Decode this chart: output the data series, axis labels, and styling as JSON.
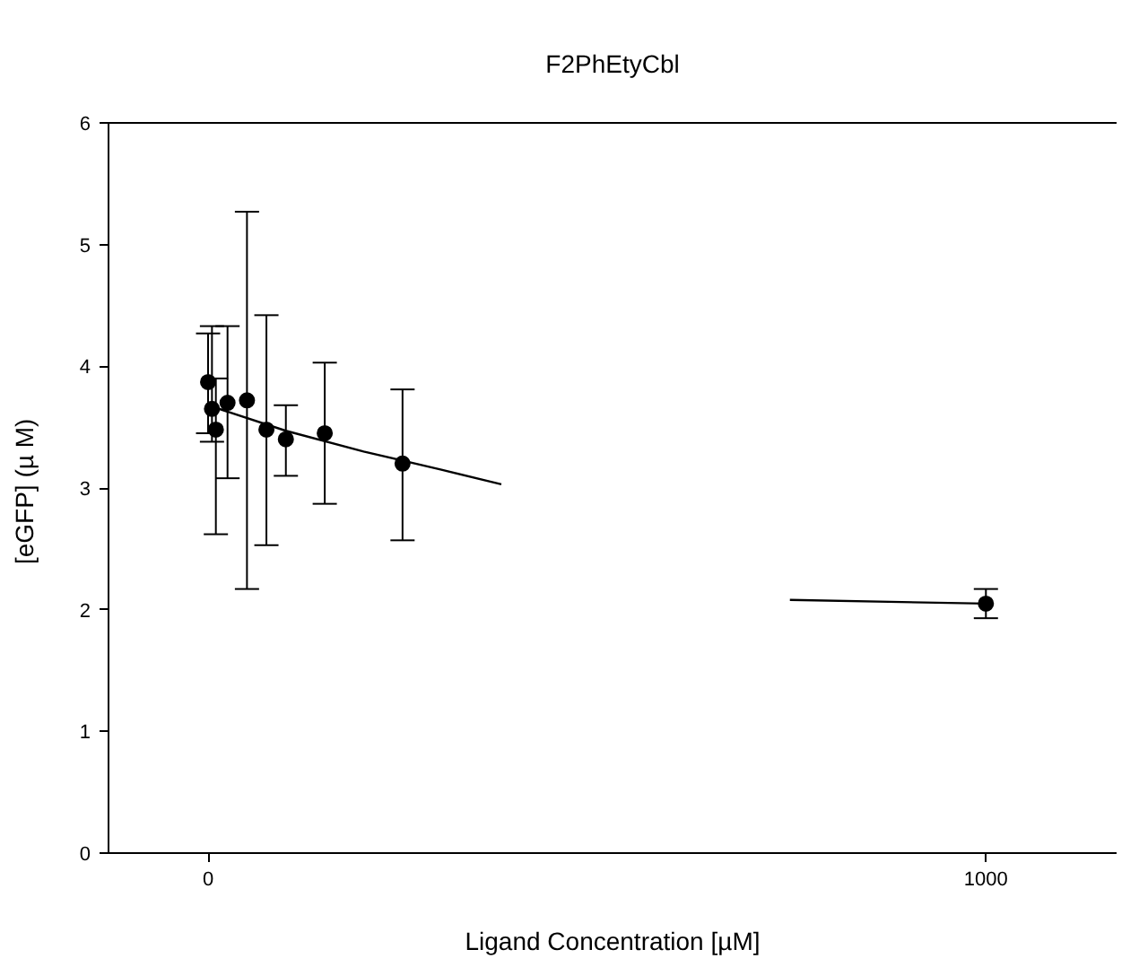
{
  "chart_data": {
    "type": "scatter",
    "title": "F2PhEtyCbl",
    "xlabel": "Ligand Concentration [µM]",
    "ylabel": "[eGFP]  (µ M)",
    "xlim": [
      -128,
      1168
    ],
    "xticks": [
      0,
      1000
    ],
    "ylim": [
      0,
      6
    ],
    "yticks": [
      0,
      1,
      2,
      3,
      4,
      5,
      6
    ],
    "marker": "circle",
    "series": [
      {
        "color": "#000000",
        "x": [
          0,
          5,
          10,
          25,
          50,
          75,
          100,
          150,
          250,
          1000
        ],
        "values": [
          3.87,
          3.65,
          3.48,
          3.7,
          3.72,
          3.48,
          3.4,
          3.45,
          3.2,
          2.05
        ],
        "errors": [
          [
            3.45,
            4.27
          ],
          [
            3.38,
            4.33
          ],
          [
            2.62,
            3.9
          ],
          [
            3.08,
            4.33
          ],
          [
            2.17,
            5.27
          ],
          [
            2.53,
            4.42
          ],
          [
            3.1,
            3.68
          ],
          [
            2.87,
            4.03
          ],
          [
            2.57,
            3.81
          ],
          [
            1.93,
            2.17
          ]
        ]
      },
      {
        "type": "line",
        "marker": "none",
        "color": "#000000",
        "x": [
          0,
          100,
          200,
          300,
          377,
          560,
          748,
          1000
        ],
        "values": [
          3.68,
          3.47,
          3.3,
          3.15,
          3.03,
          null,
          2.08,
          2.05
        ]
      }
    ]
  }
}
